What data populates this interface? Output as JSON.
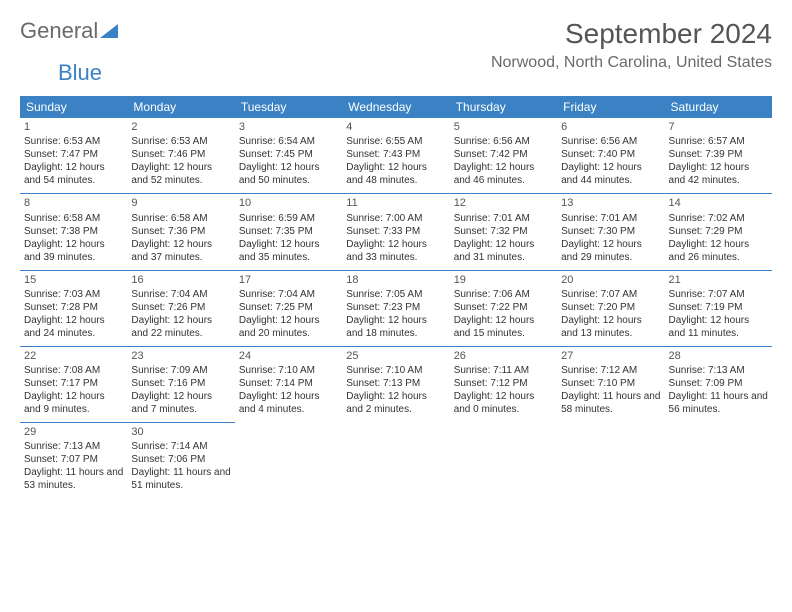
{
  "brand": {
    "part1": "General",
    "part2": "Blue"
  },
  "title": "September 2024",
  "location": "Norwood, North Carolina, United States",
  "colors": {
    "header_bg": "#3b82c4",
    "header_text": "#ffffff",
    "shade_bg": "#e8e8e8",
    "row_border": "#3b82c4",
    "text": "#333333",
    "title_color": "#555555",
    "logo_gray": "#6a6a6a",
    "logo_blue": "#3b82c4"
  },
  "day_headers": [
    "Sunday",
    "Monday",
    "Tuesday",
    "Wednesday",
    "Thursday",
    "Friday",
    "Saturday"
  ],
  "weeks": [
    [
      {
        "n": "1",
        "sr": "6:53 AM",
        "ss": "7:47 PM",
        "dl": "12 hours and 54 minutes.",
        "shade": true
      },
      {
        "n": "2",
        "sr": "6:53 AM",
        "ss": "7:46 PM",
        "dl": "12 hours and 52 minutes."
      },
      {
        "n": "3",
        "sr": "6:54 AM",
        "ss": "7:45 PM",
        "dl": "12 hours and 50 minutes."
      },
      {
        "n": "4",
        "sr": "6:55 AM",
        "ss": "7:43 PM",
        "dl": "12 hours and 48 minutes."
      },
      {
        "n": "5",
        "sr": "6:56 AM",
        "ss": "7:42 PM",
        "dl": "12 hours and 46 minutes."
      },
      {
        "n": "6",
        "sr": "6:56 AM",
        "ss": "7:40 PM",
        "dl": "12 hours and 44 minutes."
      },
      {
        "n": "7",
        "sr": "6:57 AM",
        "ss": "7:39 PM",
        "dl": "12 hours and 42 minutes.",
        "shade": true
      }
    ],
    [
      {
        "n": "8",
        "sr": "6:58 AM",
        "ss": "7:38 PM",
        "dl": "12 hours and 39 minutes.",
        "shade": true
      },
      {
        "n": "9",
        "sr": "6:58 AM",
        "ss": "7:36 PM",
        "dl": "12 hours and 37 minutes."
      },
      {
        "n": "10",
        "sr": "6:59 AM",
        "ss": "7:35 PM",
        "dl": "12 hours and 35 minutes."
      },
      {
        "n": "11",
        "sr": "7:00 AM",
        "ss": "7:33 PM",
        "dl": "12 hours and 33 minutes."
      },
      {
        "n": "12",
        "sr": "7:01 AM",
        "ss": "7:32 PM",
        "dl": "12 hours and 31 minutes."
      },
      {
        "n": "13",
        "sr": "7:01 AM",
        "ss": "7:30 PM",
        "dl": "12 hours and 29 minutes."
      },
      {
        "n": "14",
        "sr": "7:02 AM",
        "ss": "7:29 PM",
        "dl": "12 hours and 26 minutes.",
        "shade": true
      }
    ],
    [
      {
        "n": "15",
        "sr": "7:03 AM",
        "ss": "7:28 PM",
        "dl": "12 hours and 24 minutes.",
        "shade": true
      },
      {
        "n": "16",
        "sr": "7:04 AM",
        "ss": "7:26 PM",
        "dl": "12 hours and 22 minutes."
      },
      {
        "n": "17",
        "sr": "7:04 AM",
        "ss": "7:25 PM",
        "dl": "12 hours and 20 minutes."
      },
      {
        "n": "18",
        "sr": "7:05 AM",
        "ss": "7:23 PM",
        "dl": "12 hours and 18 minutes."
      },
      {
        "n": "19",
        "sr": "7:06 AM",
        "ss": "7:22 PM",
        "dl": "12 hours and 15 minutes."
      },
      {
        "n": "20",
        "sr": "7:07 AM",
        "ss": "7:20 PM",
        "dl": "12 hours and 13 minutes."
      },
      {
        "n": "21",
        "sr": "7:07 AM",
        "ss": "7:19 PM",
        "dl": "12 hours and 11 minutes.",
        "shade": true
      }
    ],
    [
      {
        "n": "22",
        "sr": "7:08 AM",
        "ss": "7:17 PM",
        "dl": "12 hours and 9 minutes.",
        "shade": true
      },
      {
        "n": "23",
        "sr": "7:09 AM",
        "ss": "7:16 PM",
        "dl": "12 hours and 7 minutes."
      },
      {
        "n": "24",
        "sr": "7:10 AM",
        "ss": "7:14 PM",
        "dl": "12 hours and 4 minutes."
      },
      {
        "n": "25",
        "sr": "7:10 AM",
        "ss": "7:13 PM",
        "dl": "12 hours and 2 minutes."
      },
      {
        "n": "26",
        "sr": "7:11 AM",
        "ss": "7:12 PM",
        "dl": "12 hours and 0 minutes."
      },
      {
        "n": "27",
        "sr": "7:12 AM",
        "ss": "7:10 PM",
        "dl": "11 hours and 58 minutes."
      },
      {
        "n": "28",
        "sr": "7:13 AM",
        "ss": "7:09 PM",
        "dl": "11 hours and 56 minutes.",
        "shade": true
      }
    ],
    [
      {
        "n": "29",
        "sr": "7:13 AM",
        "ss": "7:07 PM",
        "dl": "11 hours and 53 minutes.",
        "shade": true
      },
      {
        "n": "30",
        "sr": "7:14 AM",
        "ss": "7:06 PM",
        "dl": "11 hours and 51 minutes."
      },
      null,
      null,
      null,
      null,
      null
    ]
  ],
  "labels": {
    "sunrise": "Sunrise: ",
    "sunset": "Sunset: ",
    "daylight": "Daylight: "
  }
}
